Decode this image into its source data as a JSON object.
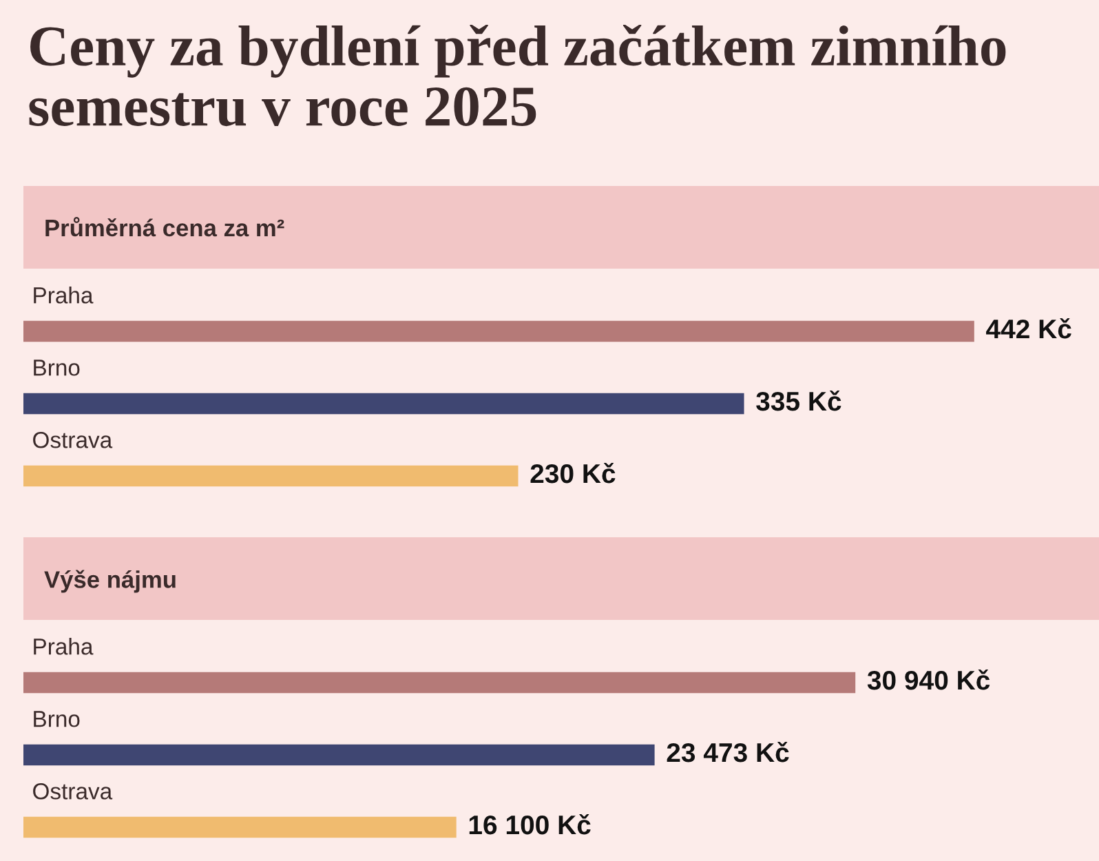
{
  "chart_data": [
    {
      "type": "bar",
      "orientation": "horizontal",
      "title": "Ceny za bydlení před začátkem zimního semestru v roce 2025",
      "subtitle": "Průměrná cena za m²",
      "categories": [
        "Praha",
        "Brno",
        "Ostrava"
      ],
      "values": [
        442,
        335,
        230
      ],
      "colors": [
        "#b57a78",
        "#3f4672",
        "#f0bb6f"
      ],
      "value_labels": [
        "442 Kč",
        "335 Kč",
        "230 Kč"
      ],
      "xlim": [
        0,
        500
      ]
    },
    {
      "type": "bar",
      "orientation": "horizontal",
      "subtitle": "Výše nájmu",
      "categories": [
        "Praha",
        "Brno",
        "Ostrava"
      ],
      "values": [
        30940,
        23473,
        16100
      ],
      "colors": [
        "#b57a78",
        "#3f4672",
        "#f0bb6f"
      ],
      "value_labels": [
        "30 940 Kč",
        "23 473 Kč",
        "16 100 Kč"
      ],
      "xlim": [
        0,
        40000
      ]
    }
  ]
}
